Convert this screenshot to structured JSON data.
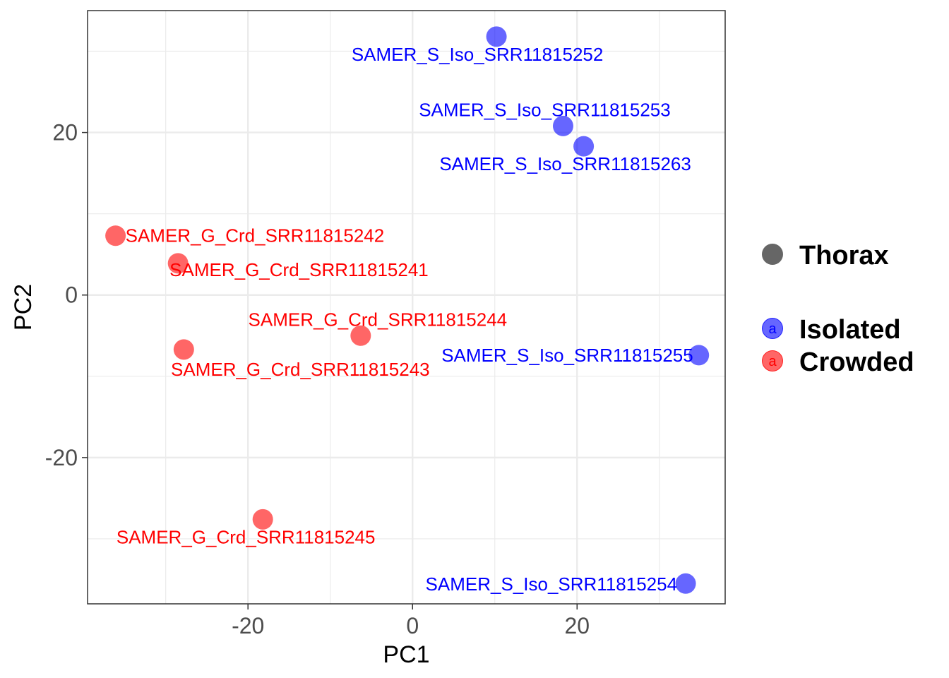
{
  "chart_data": {
    "type": "scatter",
    "title": "",
    "xlabel": "PC1",
    "ylabel": "PC2",
    "xlim": [
      -39.5,
      38
    ],
    "ylim": [
      -38,
      35
    ],
    "x_ticks": [
      -20,
      0,
      20
    ],
    "x_tick_labels": [
      "-20",
      "0",
      "20"
    ],
    "x_minor_ticks": [
      -30,
      -10,
      10,
      30
    ],
    "y_ticks": [
      -20,
      0,
      20
    ],
    "y_tick_labels": [
      "-20",
      "0",
      "20"
    ],
    "y_minor_ticks": [
      -30,
      -10,
      10,
      30
    ],
    "grid": true,
    "legend": {
      "placement": "right",
      "shape_title": "Thorax",
      "shape_color": "#666666",
      "key_glyph": "a",
      "entries": [
        {
          "name": "Isolated",
          "color": "#0000ff"
        },
        {
          "name": "Crowded",
          "color": "#ff0000"
        }
      ]
    },
    "series": [
      {
        "name": "Isolated",
        "color": "#0000ff",
        "points": [
          {
            "label": "SAMER_S_Iso_SRR11815252",
            "x": 10.2,
            "y": 31.8
          },
          {
            "label": "SAMER_S_Iso_SRR11815253",
            "x": 18.3,
            "y": 20.8
          },
          {
            "label": "SAMER_S_Iso_SRR11815263",
            "x": 20.8,
            "y": 18.3
          },
          {
            "label": "SAMER_S_Iso_SRR11815255",
            "x": 34.8,
            "y": -7.4
          },
          {
            "label": "SAMER_S_Iso_SRR11815254",
            "x": 33.2,
            "y": -35.5
          }
        ]
      },
      {
        "name": "Crowded",
        "color": "#ff0000",
        "points": [
          {
            "label": "SAMER_G_Crd_SRR11815242",
            "x": -36.1,
            "y": 7.3
          },
          {
            "label": "SAMER_G_Crd_SRR11815241",
            "x": -28.5,
            "y": 3.9
          },
          {
            "label": "SAMER_G_Crd_SRR11815244",
            "x": -6.3,
            "y": -5.0
          },
          {
            "label": "SAMER_G_Crd_SRR11815243",
            "x": -27.8,
            "y": -6.7
          },
          {
            "label": "SAMER_G_Crd_SRR11815245",
            "x": -18.2,
            "y": -27.6
          }
        ]
      }
    ]
  }
}
